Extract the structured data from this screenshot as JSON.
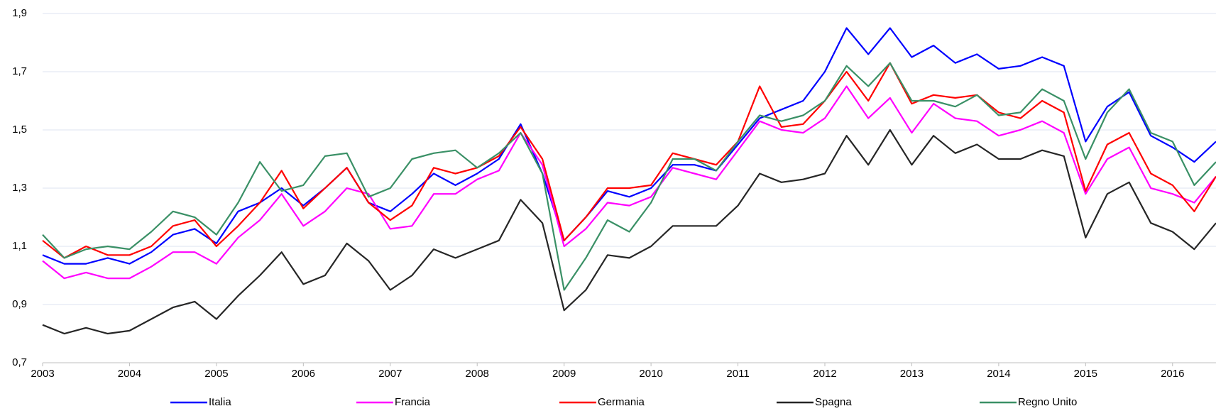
{
  "chart_data": {
    "type": "line",
    "x": [
      2003,
      2003.25,
      2003.5,
      2003.75,
      2004,
      2004.25,
      2004.5,
      2004.75,
      2005,
      2005.25,
      2005.5,
      2005.75,
      2006,
      2006.25,
      2006.5,
      2006.75,
      2007,
      2007.25,
      2007.5,
      2007.75,
      2008,
      2008.25,
      2008.5,
      2008.75,
      2009,
      2009.25,
      2009.5,
      2009.75,
      2010,
      2010.25,
      2010.5,
      2010.75,
      2011,
      2011.25,
      2011.5,
      2011.75,
      2012,
      2012.25,
      2012.5,
      2012.75,
      2013,
      2013.25,
      2013.5,
      2013.75,
      2014,
      2014.25,
      2014.5,
      2014.75,
      2015,
      2015.25,
      2015.5,
      2015.75,
      2016,
      2016.25,
      2016.5
    ],
    "series": [
      {
        "name": "Italia",
        "color": "#0000ff",
        "values": [
          1.07,
          1.04,
          1.04,
          1.06,
          1.04,
          1.08,
          1.14,
          1.16,
          1.11,
          1.22,
          1.25,
          1.3,
          1.24,
          1.3,
          1.37,
          1.25,
          1.22,
          1.28,
          1.35,
          1.31,
          1.35,
          1.4,
          1.52,
          1.35,
          1.12,
          1.2,
          1.29,
          1.27,
          1.3,
          1.38,
          1.38,
          1.36,
          1.45,
          1.54,
          1.57,
          1.6,
          1.7,
          1.85,
          1.76,
          1.85,
          1.75,
          1.79,
          1.73,
          1.76,
          1.71,
          1.72,
          1.75,
          1.72,
          1.46,
          1.58,
          1.63,
          1.48,
          1.44,
          1.39,
          1.46
        ]
      },
      {
        "name": "Francia",
        "color": "#ff00ff",
        "values": [
          1.05,
          0.99,
          1.01,
          0.99,
          0.99,
          1.03,
          1.08,
          1.08,
          1.04,
          1.13,
          1.19,
          1.28,
          1.17,
          1.22,
          1.3,
          1.28,
          1.16,
          1.17,
          1.28,
          1.28,
          1.33,
          1.36,
          1.49,
          1.38,
          1.1,
          1.16,
          1.25,
          1.24,
          1.27,
          1.37,
          1.35,
          1.33,
          1.43,
          1.53,
          1.5,
          1.49,
          1.54,
          1.65,
          1.54,
          1.61,
          1.49,
          1.59,
          1.54,
          1.53,
          1.48,
          1.5,
          1.53,
          1.49,
          1.28,
          1.4,
          1.44,
          1.3,
          1.28,
          1.25,
          1.34
        ]
      },
      {
        "name": "Germania",
        "color": "#ff0000",
        "values": [
          1.12,
          1.06,
          1.1,
          1.07,
          1.07,
          1.1,
          1.17,
          1.19,
          1.1,
          1.17,
          1.25,
          1.36,
          1.23,
          1.3,
          1.37,
          1.25,
          1.19,
          1.24,
          1.37,
          1.35,
          1.37,
          1.41,
          1.51,
          1.4,
          1.12,
          1.2,
          1.3,
          1.3,
          1.31,
          1.42,
          1.4,
          1.38,
          1.46,
          1.65,
          1.51,
          1.52,
          1.6,
          1.7,
          1.6,
          1.73,
          1.59,
          1.62,
          1.61,
          1.62,
          1.56,
          1.54,
          1.6,
          1.56,
          1.29,
          1.45,
          1.49,
          1.35,
          1.31,
          1.22,
          1.34
        ]
      },
      {
        "name": "Spagna",
        "color": "#262626",
        "values": [
          0.83,
          0.8,
          0.82,
          0.8,
          0.81,
          0.85,
          0.89,
          0.91,
          0.85,
          0.93,
          1.0,
          1.08,
          0.97,
          1.0,
          1.11,
          1.05,
          0.95,
          1.0,
          1.09,
          1.06,
          1.09,
          1.12,
          1.26,
          1.18,
          0.88,
          0.95,
          1.07,
          1.06,
          1.1,
          1.17,
          1.17,
          1.17,
          1.24,
          1.35,
          1.32,
          1.33,
          1.35,
          1.48,
          1.38,
          1.5,
          1.38,
          1.48,
          1.42,
          1.45,
          1.4,
          1.4,
          1.43,
          1.41,
          1.13,
          1.28,
          1.32,
          1.18,
          1.15,
          1.09,
          1.18
        ]
      },
      {
        "name": "Regno Unito",
        "color": "#3a9066",
        "values": [
          1.14,
          1.06,
          1.09,
          1.1,
          1.09,
          1.15,
          1.22,
          1.2,
          1.14,
          1.25,
          1.39,
          1.29,
          1.31,
          1.41,
          1.42,
          1.27,
          1.3,
          1.4,
          1.42,
          1.43,
          1.37,
          1.42,
          1.49,
          1.35,
          0.95,
          1.06,
          1.19,
          1.15,
          1.25,
          1.4,
          1.4,
          1.36,
          1.46,
          1.55,
          1.53,
          1.55,
          1.6,
          1.72,
          1.65,
          1.73,
          1.6,
          1.6,
          1.58,
          1.62,
          1.55,
          1.56,
          1.64,
          1.6,
          1.4,
          1.56,
          1.64,
          1.49,
          1.46,
          1.31,
          1.39
        ]
      }
    ],
    "xlim": [
      2003,
      2016.5
    ],
    "xticks": [
      2003,
      2004,
      2005,
      2006,
      2007,
      2008,
      2009,
      2010,
      2011,
      2012,
      2013,
      2014,
      2015,
      2016
    ],
    "ylim": [
      0.7,
      1.9
    ],
    "yticks": [
      {
        "value": 0.7,
        "label": "0,7"
      },
      {
        "value": 0.9,
        "label": "0,9"
      },
      {
        "value": 1.1,
        "label": "1,1"
      },
      {
        "value": 1.3,
        "label": "1,3"
      },
      {
        "value": 1.5,
        "label": "1,5"
      },
      {
        "value": 1.7,
        "label": "1,7"
      },
      {
        "value": 1.9,
        "label": "1,9"
      }
    ],
    "grid": true,
    "legend": "bottom"
  }
}
